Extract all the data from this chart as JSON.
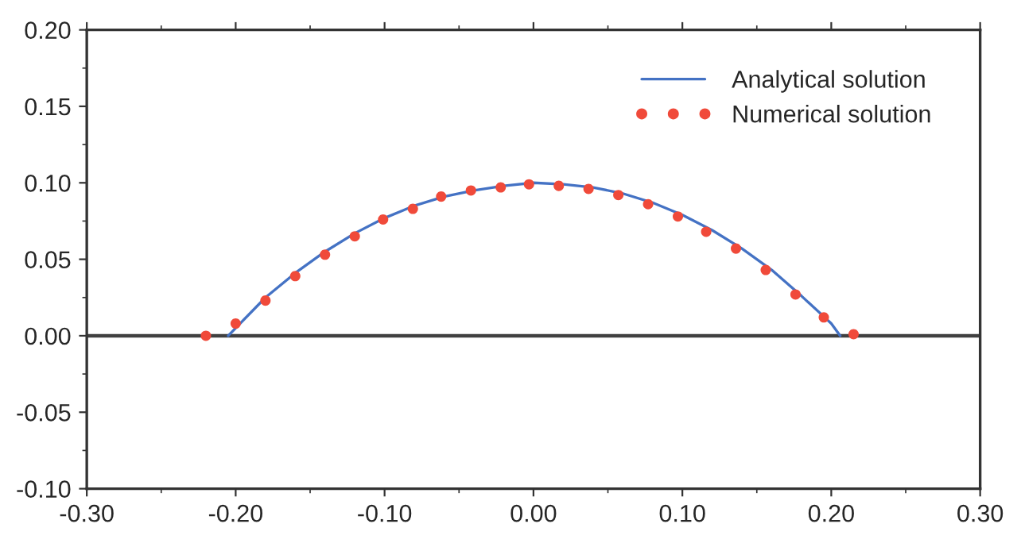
{
  "chart_data": {
    "type": "line",
    "series": [
      {
        "name": "Analytical solution",
        "color": "#4472c4",
        "marker": "none",
        "line_style": "solid",
        "x": [
          -0.205,
          -0.18,
          -0.16,
          -0.14,
          -0.12,
          -0.1,
          -0.08,
          -0.06,
          -0.04,
          -0.02,
          0.0,
          0.02,
          0.04,
          0.06,
          0.08,
          0.1,
          0.12,
          0.14,
          0.16,
          0.18,
          0.2,
          0.206
        ],
        "values": [
          0.0,
          0.025,
          0.041,
          0.055,
          0.067,
          0.077,
          0.085,
          0.091,
          0.095,
          0.098,
          0.1,
          0.099,
          0.097,
          0.093,
          0.087,
          0.079,
          0.069,
          0.057,
          0.043,
          0.026,
          0.008,
          0.0
        ]
      },
      {
        "name": "Numerical solution",
        "type": "scatter",
        "color": "#f04a3a",
        "marker": "circle",
        "x": [
          -0.22,
          -0.2,
          -0.18,
          -0.16,
          -0.14,
          -0.12,
          -0.101,
          -0.081,
          -0.062,
          -0.042,
          -0.022,
          -0.003,
          0.017,
          0.037,
          0.057,
          0.077,
          0.097,
          0.116,
          0.136,
          0.156,
          0.176,
          0.195,
          0.215
        ],
        "values": [
          0.0,
          0.008,
          0.023,
          0.039,
          0.053,
          0.065,
          0.076,
          0.083,
          0.091,
          0.095,
          0.097,
          0.099,
          0.098,
          0.096,
          0.092,
          0.086,
          0.078,
          0.068,
          0.057,
          0.043,
          0.027,
          0.012,
          0.001
        ]
      }
    ],
    "xlim": [
      -0.3,
      0.3
    ],
    "xticks": [
      {
        "value": -0.3,
        "label": "-0.30"
      },
      {
        "value": -0.2,
        "label": "-0.20"
      },
      {
        "value": -0.1,
        "label": "-0.10"
      },
      {
        "value": 0.0,
        "label": "0.00"
      },
      {
        "value": 0.1,
        "label": "0.10"
      },
      {
        "value": 0.2,
        "label": "0.20"
      },
      {
        "value": 0.3,
        "label": "0.30"
      }
    ],
    "ylim": [
      -0.1,
      0.2
    ],
    "yticks": [
      {
        "value": -0.1,
        "label": "-0.10"
      },
      {
        "value": -0.05,
        "label": "-0.05"
      },
      {
        "value": 0.0,
        "label": "0.00"
      },
      {
        "value": 0.05,
        "label": "0.05"
      },
      {
        "value": 0.1,
        "label": "0.10"
      },
      {
        "value": 0.15,
        "label": "0.15"
      },
      {
        "value": 0.2,
        "label": "0.20"
      }
    ],
    "ref_lines": [
      {
        "axis": "y",
        "value": 0.0,
        "color": "#404040",
        "line_style": "solid"
      }
    ],
    "grid": false,
    "legend": "top right"
  }
}
